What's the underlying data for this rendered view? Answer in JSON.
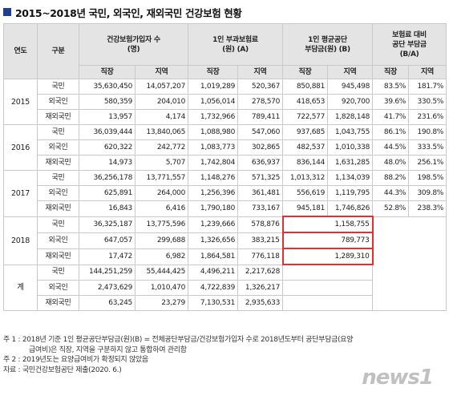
{
  "title": "2015~2018년 국민, 외국인, 재외국민 건강보험 현황",
  "header": {
    "year": "연도",
    "group": "구분",
    "col_groups": [
      {
        "line1": "건강보험가입자 수",
        "line2": "(명)"
      },
      {
        "line1": "1인 부과보험료",
        "line2": "(원) (A)"
      },
      {
        "line1": "1인 평균공단",
        "line2": "부담금(원) (B)"
      },
      {
        "line1": "보험료 대비",
        "line2": "공단 부담금",
        "line3": "(B/A)"
      }
    ],
    "sub": [
      "직장",
      "지역"
    ]
  },
  "years": [
    {
      "year": "2015",
      "rows": [
        {
          "group": "국민",
          "v": [
            "35,630,450",
            "14,057,207",
            "1,019,289",
            "520,367",
            "850,881",
            "945,498",
            "83.5%",
            "181.7%"
          ]
        },
        {
          "group": "외국인",
          "v": [
            "580,359",
            "204,010",
            "1,056,014",
            "278,570",
            "418,653",
            "920,700",
            "39.6%",
            "330.5%"
          ]
        },
        {
          "group": "재외국민",
          "v": [
            "13,957",
            "4,174",
            "1,732,966",
            "789,411",
            "722,577",
            "1,828,148",
            "41.7%",
            "231.6%"
          ]
        }
      ]
    },
    {
      "year": "2016",
      "rows": [
        {
          "group": "국민",
          "v": [
            "36,039,444",
            "13,840,065",
            "1,088,980",
            "547,060",
            "937,685",
            "1,043,755",
            "86.1%",
            "190.8%"
          ]
        },
        {
          "group": "외국인",
          "v": [
            "620,322",
            "242,772",
            "1,083,773",
            "302,865",
            "482,537",
            "1,010,338",
            "44.5%",
            "333.5%"
          ]
        },
        {
          "group": "재외국민",
          "v": [
            "14,973",
            "5,707",
            "1,742,804",
            "636,937",
            "836,144",
            "1,631,285",
            "48.0%",
            "256.1%"
          ]
        }
      ]
    },
    {
      "year": "2017",
      "rows": [
        {
          "group": "국민",
          "v": [
            "36,256,178",
            "13,771,557",
            "1,148,276",
            "571,325",
            "1,013,312",
            "1,134,039",
            "88.2%",
            "198.5%"
          ]
        },
        {
          "group": "외국인",
          "v": [
            "625,891",
            "264,000",
            "1,256,396",
            "361,481",
            "556,619",
            "1,119,795",
            "44.3%",
            "309.8%"
          ]
        },
        {
          "group": "재외국민",
          "v": [
            "16,843",
            "6,416",
            "1,790,180",
            "733,167",
            "945,181",
            "1,746,826",
            "52.8%",
            "238.3%"
          ]
        }
      ]
    }
  ],
  "y2018": {
    "year": "2018",
    "rows": [
      {
        "group": "국민",
        "v": [
          "36,325,187",
          "13,775,596",
          "1,239,666",
          "578,876"
        ],
        "merged": "1,158,755"
      },
      {
        "group": "외국인",
        "v": [
          "647,057",
          "299,688",
          "1,326,656",
          "383,215"
        ],
        "merged": "789,773"
      },
      {
        "group": "재외국민",
        "v": [
          "17,472",
          "6,982",
          "1,864,581",
          "776,118"
        ],
        "merged": "1,289,310"
      }
    ]
  },
  "total": {
    "label": "계",
    "rows": [
      {
        "group": "국민",
        "v": [
          "144,251,259",
          "55,444,425",
          "4,496,211",
          "2,217,628"
        ]
      },
      {
        "group": "외국인",
        "v": [
          "2,473,629",
          "1,010,470",
          "4,722,839",
          "1,326,217"
        ]
      },
      {
        "group": "재외국민",
        "v": [
          "63,245",
          "23,279",
          "7,130,531",
          "2,935,633"
        ]
      }
    ]
  },
  "notes": {
    "n1a": "주 1 : 2018년 기준 1인 평균공단부담금(원)(B) = 전체공단부담금/건강보험가입자 수로 2018년도부터 공단부담금(요양",
    "n1b": "급여비)은 직장, 지역을 구분하지 않고 통합하여 관리함",
    "n2": "주 2 : 2019년도는 요양급여비가 확정되지 않았음",
    "src": "자료 : 국민건강보험공단 제출(2020. 6.)"
  },
  "logo": "news1"
}
